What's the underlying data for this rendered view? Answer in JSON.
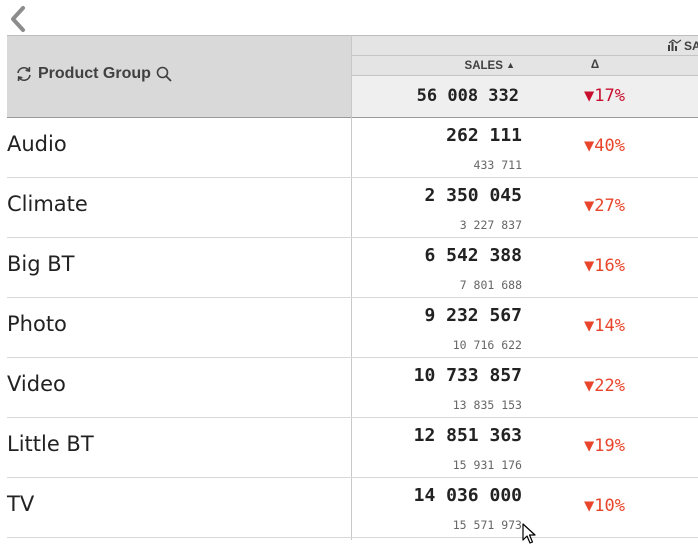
{
  "header": {
    "dimension_label": "Product Group",
    "top_group_label": "SA",
    "measure_label": "SALES",
    "measure_sort_icon": "sort-ascending-triangle",
    "delta_label": "Δ",
    "total_value": "56 008 332",
    "total_delta": "17%"
  },
  "rows": [
    {
      "name": "Audio",
      "value": "262 111",
      "previous": "433 711",
      "delta": "40%"
    },
    {
      "name": "Climate",
      "value": "2 350 045",
      "previous": "3 227 837",
      "delta": "27%"
    },
    {
      "name": "Big BT",
      "value": "6 542 388",
      "previous": "7 801 688",
      "delta": "16%"
    },
    {
      "name": "Photo",
      "value": "9 232 567",
      "previous": "10 716 622",
      "delta": "14%"
    },
    {
      "name": "Video",
      "value": "10 733 857",
      "previous": "13 835 153",
      "delta": "22%"
    },
    {
      "name": "Little BT",
      "value": "12 851 363",
      "previous": "15 931 176",
      "delta": "19%"
    },
    {
      "name": "TV",
      "value": "14 036 000",
      "previous": "15 571 973",
      "delta": "10%"
    }
  ],
  "colors": {
    "header_bg": "#d9d9d9",
    "negative_delta": "#e8452c",
    "total_delta": "#c8102e"
  },
  "icons": {
    "back": "chevron-left-icon",
    "refresh": "cycle-icon",
    "search": "search-icon",
    "group": "chart-icon"
  }
}
